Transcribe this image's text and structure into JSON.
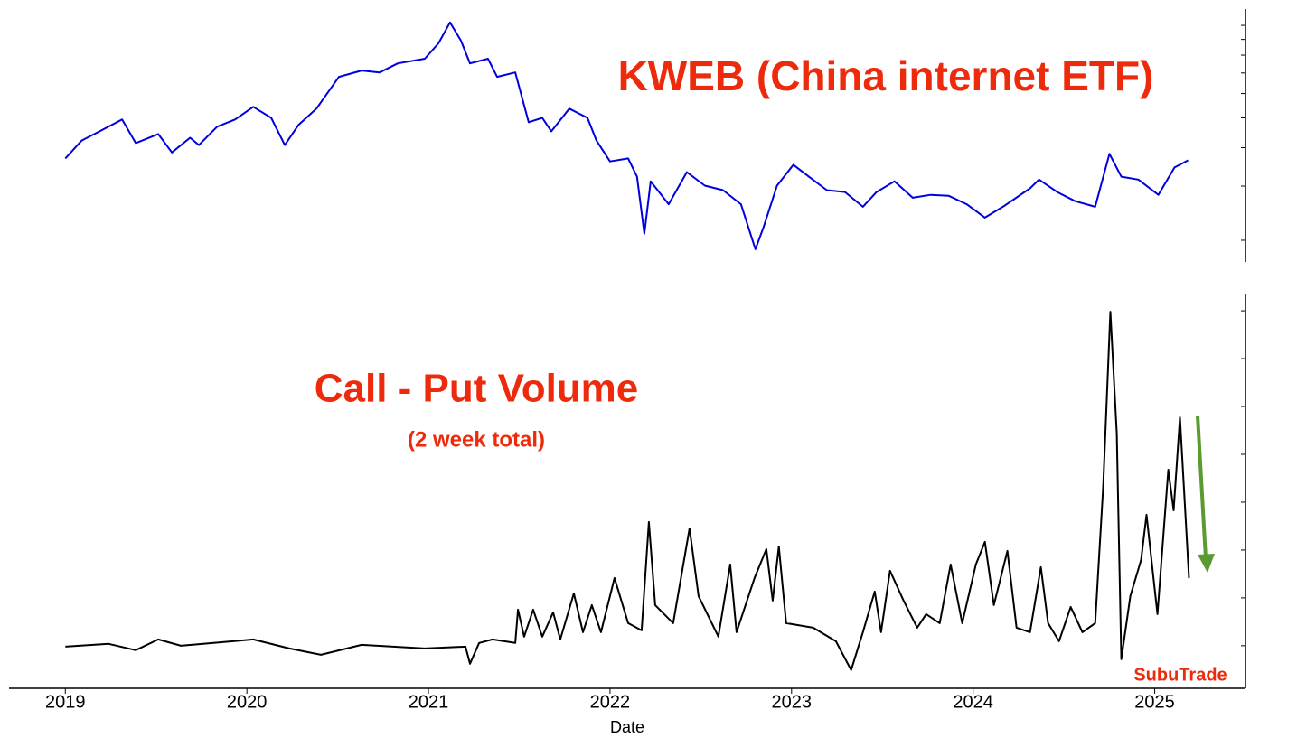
{
  "chart_data": [
    {
      "type": "line",
      "title": "KWEB (China internet ETF)",
      "color": "#0000dd",
      "log_scale": true,
      "xlim": [
        2018.69,
        2025.5
      ],
      "ylim": [
        17,
        113
      ],
      "yticks": [
        20,
        30,
        40,
        50,
        60,
        70,
        80,
        90,
        100
      ],
      "x": [
        2019.0,
        2019.09,
        2019.189,
        2019.313,
        2019.388,
        2019.512,
        2019.587,
        2019.687,
        2019.736,
        2019.836,
        2019.935,
        2020.035,
        2020.134,
        2020.209,
        2020.284,
        2020.383,
        2020.507,
        2020.632,
        2020.731,
        2020.831,
        2020.98,
        2021.055,
        2021.119,
        2021.179,
        2021.229,
        2021.328,
        2021.378,
        2021.478,
        2021.552,
        2021.627,
        2021.677,
        2021.776,
        2021.876,
        2021.925,
        2022.0,
        2022.1,
        2022.149,
        2022.189,
        2022.224,
        2022.323,
        2022.423,
        2022.522,
        2022.622,
        2022.721,
        2022.801,
        2022.846,
        2022.92,
        2023.01,
        2023.095,
        2023.194,
        2023.294,
        2023.393,
        2023.468,
        2023.567,
        2023.667,
        2023.766,
        2023.866,
        2023.965,
        2024.065,
        2024.164,
        2024.313,
        2024.363,
        2024.463,
        2024.562,
        2024.672,
        2024.751,
        2024.816,
        2024.91,
        2025.02,
        2025.109,
        2025.184
      ],
      "values": [
        36.9,
        42.2,
        45.2,
        49.4,
        41.4,
        44.3,
        38.6,
        43.1,
        40.8,
        46.8,
        49.4,
        54.3,
        50.0,
        40.8,
        47.4,
        53.6,
        68.0,
        71.3,
        70.3,
        75.2,
        77.9,
        87.4,
        102.2,
        89.2,
        75.2,
        77.9,
        68.0,
        70.3,
        48.4,
        50.0,
        45.2,
        53.6,
        50.0,
        42.2,
        36.1,
        36.9,
        32.2,
        21.0,
        31.1,
        26.2,
        33.3,
        30.1,
        29.1,
        26.2,
        18.7,
        22.1,
        30.1,
        35.2,
        32.2,
        29.1,
        28.7,
        25.7,
        28.7,
        31.1,
        27.5,
        28.1,
        27.9,
        26.2,
        23.7,
        25.7,
        29.5,
        31.5,
        28.7,
        26.8,
        25.7,
        38.2,
        32.2,
        31.5,
        28.1,
        34.5,
        36.4
      ]
    },
    {
      "type": "line",
      "title": "Call - Put Volume",
      "subtitle": "(2 week total)",
      "annotation": "SubuTrade",
      "x_label": "Date",
      "color": "#000000",
      "xlim": [
        2018.69,
        2025.5
      ],
      "xticks": [
        2019,
        2020,
        2021,
        2022,
        2023,
        2024,
        2025
      ],
      "ylim": [
        -89,
        736
      ],
      "yticks": [
        0,
        100,
        200,
        300,
        400,
        500,
        600,
        700
      ],
      "x": [
        2019.0,
        2019.239,
        2019.388,
        2019.512,
        2019.637,
        2020.035,
        2020.234,
        2020.408,
        2020.632,
        2020.98,
        2021.204,
        2021.229,
        2021.279,
        2021.353,
        2021.478,
        2021.493,
        2021.527,
        2021.577,
        2021.627,
        2021.687,
        2021.726,
        2021.801,
        2021.851,
        2021.9,
        2021.95,
        2022.025,
        2022.1,
        2022.174,
        2022.214,
        2022.249,
        2022.348,
        2022.438,
        2022.488,
        2022.597,
        2022.662,
        2022.697,
        2022.796,
        2022.861,
        2022.896,
        2022.93,
        2022.97,
        2023.119,
        2023.244,
        2023.328,
        2023.393,
        2023.458,
        2023.493,
        2023.542,
        2023.617,
        2023.692,
        2023.741,
        2023.816,
        2023.876,
        2023.94,
        2024.015,
        2024.065,
        2024.114,
        2024.189,
        2024.239,
        2024.313,
        2024.373,
        2024.413,
        2024.473,
        2024.537,
        2024.602,
        2024.672,
        2024.716,
        2024.756,
        2024.791,
        2024.816,
        2024.866,
        2024.925,
        2024.955,
        2025.015,
        2025.075,
        2025.104,
        2025.139,
        2025.189
      ],
      "values": [
        -1.9,
        3.8,
        -9.4,
        13.2,
        0,
        13.2,
        -5.7,
        -18.9,
        1.9,
        -5.7,
        -1.9,
        -37.7,
        5.7,
        13.2,
        5.7,
        75.5,
        18.9,
        75.5,
        18.9,
        69.8,
        13.2,
        109.4,
        28.3,
        84.9,
        28.3,
        141.5,
        47.2,
        32.1,
        258.5,
        84.9,
        47.2,
        245.3,
        103.8,
        18.9,
        169.8,
        28.3,
        141.5,
        201.9,
        94.3,
        207.5,
        47.2,
        37.7,
        9.4,
        -50.9,
        28.3,
        113.2,
        28.3,
        156.6,
        94.3,
        37.7,
        66.0,
        47.2,
        169.8,
        47.2,
        169.8,
        217.0,
        84.9,
        198.1,
        37.7,
        28.3,
        164.2,
        47.2,
        9.4,
        81.1,
        28.3,
        47.2,
        330.2,
        698.1,
        443.4,
        -28.3,
        103.8,
        179.2,
        273.6,
        66.0,
        367.9,
        283.0,
        477.4,
        141.5
      ]
    }
  ]
}
